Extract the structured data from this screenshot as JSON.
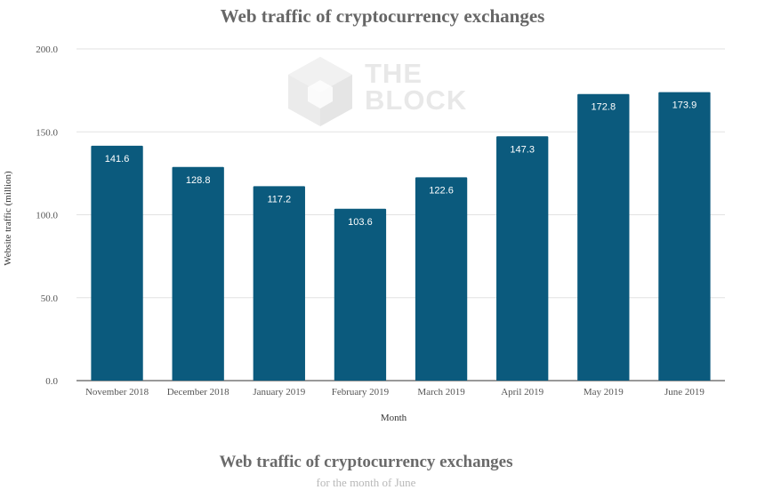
{
  "chart_data": {
    "type": "bar",
    "title": "Web traffic of cryptocurrency exchanges",
    "xlabel": "Month",
    "ylabel": "Website traffic (million)",
    "categories": [
      "November 2018",
      "December 2018",
      "January 2019",
      "February 2019",
      "March 2019",
      "April 2019",
      "May 2019",
      "June 2019"
    ],
    "values": [
      141.6,
      128.8,
      117.2,
      103.6,
      122.6,
      147.3,
      172.8,
      173.9
    ],
    "data_labels": [
      "141.6",
      "128.8",
      "117.2",
      "103.6",
      "122.6",
      "147.3",
      "172.8",
      "173.9"
    ],
    "yticks": [
      "0.0",
      "50.0",
      "100.0",
      "150.0",
      "200.0"
    ],
    "ylim": [
      0,
      200
    ],
    "grid": true,
    "legend": "none",
    "bar_color": "#0b5a7d"
  },
  "watermark": {
    "line1": "THE",
    "line2": "BLOCK"
  },
  "footer": {
    "title": "Web traffic of cryptocurrency exchanges",
    "subtitle": "for the month of June"
  }
}
